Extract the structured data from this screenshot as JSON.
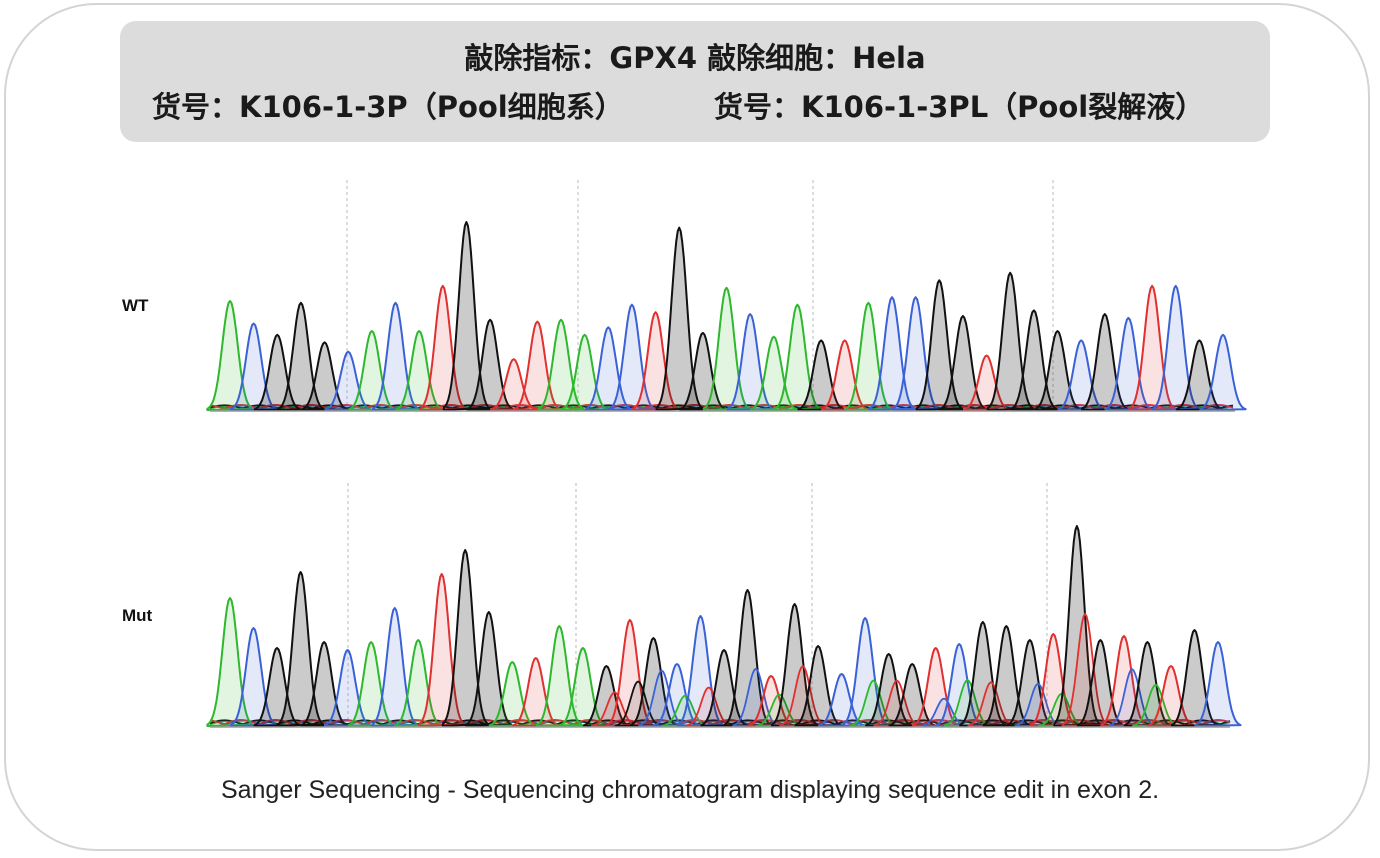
{
  "header": {
    "line1": "敲除指标：GPX4   敲除细胞：Hela",
    "line2_left": "货号：K106-1-3P（Pool细胞系）",
    "line2_right": "货号：K106-1-3PL（Pool裂解液）"
  },
  "tracks": {
    "wt_label": "WT",
    "mut_label": "Mut"
  },
  "caption": "Sanger Sequencing - Sequencing chromatogram displaying sequence edit in exon 2.",
  "colors": {
    "A": "#2db82d",
    "C": "#3a62d6",
    "G": "#111111",
    "T": "#e03030",
    "header_bg": "#dcdcdc",
    "card_border": "#d4d4d4",
    "guide": "#bbbbbb"
  },
  "chart_data": [
    {
      "type": "chromatogram",
      "track": "WT",
      "peaks": [
        {
          "base": "A",
          "h": 0.58
        },
        {
          "base": "C",
          "h": 0.46
        },
        {
          "base": "G",
          "h": 0.4
        },
        {
          "base": "G",
          "h": 0.57
        },
        {
          "base": "G",
          "h": 0.36
        },
        {
          "base": "C",
          "h": 0.31
        },
        {
          "base": "A",
          "h": 0.42
        },
        {
          "base": "C",
          "h": 0.57
        },
        {
          "base": "A",
          "h": 0.42
        },
        {
          "base": "T",
          "h": 0.66
        },
        {
          "base": "G",
          "h": 1.0
        },
        {
          "base": "G",
          "h": 0.48
        },
        {
          "base": "T",
          "h": 0.27
        },
        {
          "base": "T",
          "h": 0.47
        },
        {
          "base": "A",
          "h": 0.48
        },
        {
          "base": "A",
          "h": 0.4
        },
        {
          "base": "C",
          "h": 0.44
        },
        {
          "base": "C",
          "h": 0.56
        },
        {
          "base": "T",
          "h": 0.52
        },
        {
          "base": "G",
          "h": 0.97
        },
        {
          "base": "G",
          "h": 0.41
        },
        {
          "base": "A",
          "h": 0.65
        },
        {
          "base": "C",
          "h": 0.51
        },
        {
          "base": "A",
          "h": 0.39
        },
        {
          "base": "A",
          "h": 0.56
        },
        {
          "base": "G",
          "h": 0.37
        },
        {
          "base": "T",
          "h": 0.37
        },
        {
          "base": "A",
          "h": 0.57
        },
        {
          "base": "C",
          "h": 0.6
        },
        {
          "base": "C",
          "h": 0.6
        },
        {
          "base": "G",
          "h": 0.69
        },
        {
          "base": "G",
          "h": 0.5
        },
        {
          "base": "T",
          "h": 0.29
        },
        {
          "base": "G",
          "h": 0.73
        },
        {
          "base": "G",
          "h": 0.53
        },
        {
          "base": "G",
          "h": 0.42
        },
        {
          "base": "C",
          "h": 0.37
        },
        {
          "base": "G",
          "h": 0.51
        },
        {
          "base": "C",
          "h": 0.49
        },
        {
          "base": "T",
          "h": 0.66
        },
        {
          "base": "C",
          "h": 0.66
        },
        {
          "base": "G",
          "h": 0.37
        },
        {
          "base": "C",
          "h": 0.4
        }
      ]
    },
    {
      "type": "chromatogram",
      "track": "Mut",
      "peaks": [
        {
          "base": "A",
          "h": 0.64
        },
        {
          "base": "C",
          "h": 0.49
        },
        {
          "base": "G",
          "h": 0.39
        },
        {
          "base": "G",
          "h": 0.77
        },
        {
          "base": "G",
          "h": 0.42
        },
        {
          "base": "C",
          "h": 0.38
        },
        {
          "base": "A",
          "h": 0.42
        },
        {
          "base": "C",
          "h": 0.59
        },
        {
          "base": "A",
          "h": 0.43
        },
        {
          "base": "T",
          "h": 0.76
        },
        {
          "base": "G",
          "h": 0.88
        },
        {
          "base": "G",
          "h": 0.57
        },
        {
          "base": "A",
          "h": 0.32
        },
        {
          "base": "T",
          "h": 0.34
        },
        {
          "base": "A",
          "h": 0.5
        },
        {
          "base": "A",
          "h": 0.39
        },
        {
          "base": "G",
          "h": 0.3
        },
        {
          "base": "T",
          "h": 0.53
        },
        {
          "base": "G",
          "h": 0.44
        },
        {
          "base": "C",
          "h": 0.31
        },
        {
          "base": "C",
          "h": 0.55
        },
        {
          "base": "G",
          "h": 0.38
        },
        {
          "base": "G",
          "h": 0.68
        },
        {
          "base": "T",
          "h": 0.25
        },
        {
          "base": "G",
          "h": 0.61
        },
        {
          "base": "G",
          "h": 0.4
        },
        {
          "base": "C",
          "h": 0.26
        },
        {
          "base": "C",
          "h": 0.54
        },
        {
          "base": "G",
          "h": 0.36
        },
        {
          "base": "G",
          "h": 0.31
        },
        {
          "base": "T",
          "h": 0.39
        },
        {
          "base": "C",
          "h": 0.41
        },
        {
          "base": "G",
          "h": 0.52
        },
        {
          "base": "G",
          "h": 0.5
        },
        {
          "base": "G",
          "h": 0.43
        },
        {
          "base": "T",
          "h": 0.46
        },
        {
          "base": "G",
          "h": 1.0
        },
        {
          "base": "G",
          "h": 0.43
        },
        {
          "base": "T",
          "h": 0.45
        },
        {
          "base": "G",
          "h": 0.42
        },
        {
          "base": "T",
          "h": 0.3
        },
        {
          "base": "G",
          "h": 0.48
        },
        {
          "base": "C",
          "h": 0.42
        }
      ]
    }
  ]
}
